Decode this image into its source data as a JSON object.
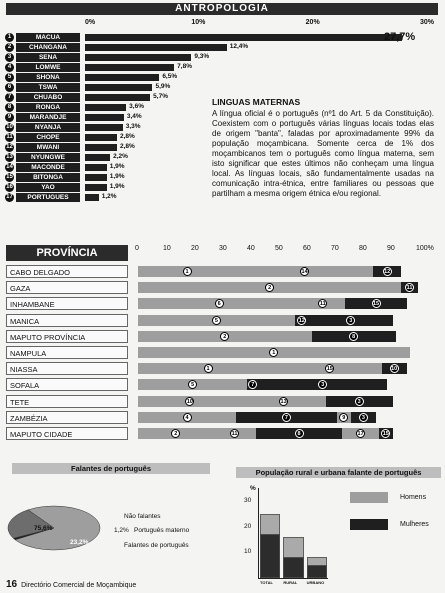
{
  "header": {
    "title": "ANTROPOLOGIA"
  },
  "lang_chart": {
    "type": "bar",
    "ticks": [
      "0%",
      "10%",
      "20%",
      "30%"
    ],
    "categories": [
      "MACUA",
      "CHANGANA",
      "SENA",
      "LOMWE",
      "SHONA",
      "TSWA",
      "CHUABO",
      "RONGA",
      "MARANDJE",
      "NYANJA",
      "CHOPE",
      "MWANI",
      "NYUNGWE",
      "MACONDE",
      "BITONGA",
      "YAO",
      "PORTUGUES"
    ],
    "values": [
      27.7,
      12.4,
      9.3,
      7.8,
      6.5,
      5.9,
      5.7,
      3.6,
      3.4,
      3.3,
      2.8,
      2.8,
      2.2,
      1.9,
      1.9,
      1.9,
      1.2
    ],
    "labels": [
      "27,7%",
      "12,4%",
      "9,3%",
      "7,8%",
      "6,5%",
      "5,9%",
      "5,7%",
      "3,6%",
      "3,4%",
      "3,3%",
      "2,8%",
      "2,8%",
      "2,2%",
      "1,9%",
      "1,9%",
      "1,9%",
      "1,2%"
    ],
    "ranks": [
      "1",
      "2",
      "3",
      "4",
      "5",
      "6",
      "7",
      "8",
      "9",
      "10",
      "11",
      "12",
      "13",
      "14",
      "15",
      "16",
      "17"
    ],
    "xlim": [
      0,
      30
    ]
  },
  "article": {
    "heading": "LINGUAS MATERNAS",
    "body": "A língua oficial é o português (nº1 do Art. 5 da Constituição). Coexistem com o português várias línguas locais todas elas de origem \"banta\", faladas por aproximadamente 99% da população moçambicana. Somente cerca de 1% dos moçambicanos tem o português como língua materna, sem isto significar que estes últimos não conheçam uma língua local. As línguas locais, são fundamentalmente usadas na comunicação intra-étnica, entre familiares ou pessoas que partilham a mesma origem étnica e/ou regional."
  },
  "chart_data": [
    {
      "type": "bar",
      "title": "PROVÍNCIA",
      "ticks": [
        "0",
        "10",
        "20",
        "30",
        "40",
        "50",
        "60",
        "70",
        "80",
        "90",
        "100%"
      ],
      "xlim": [
        0,
        100
      ],
      "rows": [
        {
          "name": "CABO DELGADO",
          "segments": [
            {
              "v": 35,
              "l": "1",
              "s": "light"
            },
            {
              "v": 49,
              "l": "14",
              "s": "light"
            },
            {
              "v": 10,
              "l": "12",
              "s": "dark"
            }
          ]
        },
        {
          "name": "GAZA",
          "segments": [
            {
              "v": 94,
              "l": "2",
              "s": "light"
            },
            {
              "v": 6,
              "l": "11",
              "s": "dark"
            }
          ]
        },
        {
          "name": "INHAMBANE",
          "segments": [
            {
              "v": 58,
              "l": "6",
              "s": "light"
            },
            {
              "v": 16,
              "l": "11",
              "s": "light"
            },
            {
              "v": 22,
              "l": "15",
              "s": "dark"
            }
          ]
        },
        {
          "name": "MANICA",
          "segments": [
            {
              "v": 56,
              "l": "5",
              "s": "light"
            },
            {
              "v": 5,
              "l": "12",
              "s": "dark"
            },
            {
              "v": 30,
              "l": "3",
              "s": "dark"
            }
          ]
        },
        {
          "name": "MAPUTO PROVÍNCIA",
          "segments": [
            {
              "v": 62,
              "l": "2",
              "s": "light"
            },
            {
              "v": 30,
              "l": "8",
              "s": "dark"
            }
          ]
        },
        {
          "name": "NAMPULA",
          "segments": [
            {
              "v": 97,
              "l": "1",
              "s": "light"
            }
          ]
        },
        {
          "name": "NIASSA",
          "segments": [
            {
              "v": 50,
              "l": "1",
              "s": "light"
            },
            {
              "v": 37,
              "l": "15",
              "s": "light"
            },
            {
              "v": 9,
              "l": "10",
              "s": "dark"
            }
          ]
        },
        {
          "name": "SOFALA",
          "segments": [
            {
              "v": 39,
              "l": "5",
              "s": "light"
            },
            {
              "v": 4,
              "l": "7",
              "s": "dark"
            },
            {
              "v": 46,
              "l": "3",
              "s": "dark"
            }
          ]
        },
        {
          "name": "TETE",
          "segments": [
            {
              "v": 37,
              "l": "10",
              "s": "light"
            },
            {
              "v": 30,
              "l": "13",
              "s": "light"
            },
            {
              "v": 24,
              "l": "3",
              "s": "dark"
            }
          ]
        },
        {
          "name": "ZAMBÉZIA",
          "segments": [
            {
              "v": 35,
              "l": "4",
              "s": "light"
            },
            {
              "v": 36,
              "l": "7",
              "s": "dark"
            },
            {
              "v": 5,
              "l": "9",
              "s": "light"
            },
            {
              "v": 9,
              "l": "3",
              "s": "dark"
            }
          ]
        },
        {
          "name": "MAPUTO CIDADE",
          "segments": [
            {
              "v": 27,
              "l": "2",
              "s": "light"
            },
            {
              "v": 15,
              "l": "11",
              "s": "light"
            },
            {
              "v": 31,
              "l": "8",
              "s": "dark"
            },
            {
              "v": 13,
              "l": "17",
              "s": "light"
            },
            {
              "v": 5,
              "l": "15",
              "s": "dark"
            }
          ]
        }
      ]
    },
    {
      "type": "pie",
      "title": "Falantes de português",
      "slices": [
        {
          "name": "Não falantes",
          "value": 75.6,
          "label": "75,6%"
        },
        {
          "name": "Português materno",
          "value": 1.2,
          "label": "1,2%"
        },
        {
          "name": "Falantes de português",
          "value": 23.2,
          "label": "23,2%"
        }
      ]
    },
    {
      "type": "bar",
      "title": "População rural e urbana falante de português",
      "ylabel": "%",
      "yticks": [
        "10",
        "20",
        "30"
      ],
      "ylim": [
        0,
        35
      ],
      "categories": [
        "TOTAL",
        "RURAL",
        "URBANO"
      ],
      "series": [
        {
          "name": "Homens",
          "values": [
            25,
            16,
            8
          ]
        },
        {
          "name": "Mulheres",
          "values": [
            17,
            8,
            5
          ]
        }
      ]
    }
  ],
  "colors": {
    "dark": "#1f1f1f",
    "light": "#9e9e9e",
    "mid": "#6d6d6d"
  },
  "footer": {
    "page": "16",
    "text": "Directório Comercial de Moçambique"
  }
}
